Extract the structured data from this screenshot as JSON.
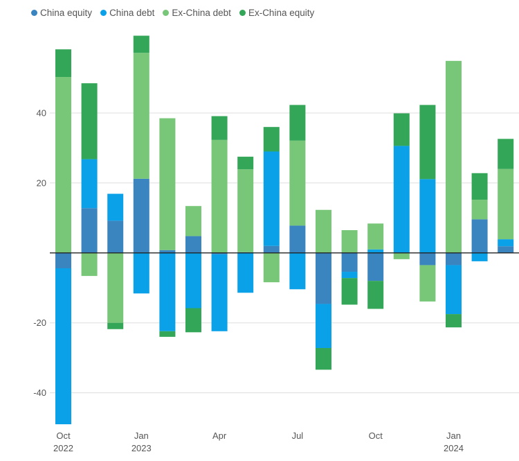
{
  "chart_data": {
    "type": "bar",
    "stacked": true,
    "title": "",
    "xlabel": "",
    "ylabel": "",
    "ylim": [
      -49,
      62
    ],
    "y_ticks": [
      40,
      20,
      -20,
      -40
    ],
    "y_tick_labels": [
      "40",
      "20",
      "-20",
      "-40"
    ],
    "grid": true,
    "legend_position": "top-left",
    "categories": [
      "Oct 2022",
      "Nov 2022",
      "Dec 2022",
      "Jan 2023",
      "Feb 2023",
      "Mar 2023",
      "Apr 2023",
      "May 2023",
      "Jun 2023",
      "Jul 2023",
      "Aug 2023",
      "Sep 2023",
      "Oct 2023",
      "Nov 2023",
      "Dec 2023",
      "Jan 2024",
      "Feb 2024",
      "Mar 2024"
    ],
    "x_tick_labels": [
      {
        "index": 0,
        "line1": "Oct",
        "line2": "2022"
      },
      {
        "index": 3,
        "line1": "Jan",
        "line2": "2023"
      },
      {
        "index": 6,
        "line1": "Apr",
        "line2": ""
      },
      {
        "index": 9,
        "line1": "Jul",
        "line2": ""
      },
      {
        "index": 12,
        "line1": "Oct",
        "line2": ""
      },
      {
        "index": 15,
        "line1": "Jan",
        "line2": "2024"
      }
    ],
    "series": [
      {
        "name": "China equity",
        "color": "#3a84c0",
        "values": [
          -4.4,
          12.8,
          9.2,
          21.2,
          0.8,
          4.8,
          -0.4,
          0.2,
          2.0,
          7.8,
          -14.6,
          -5.4,
          -8.0,
          0.0,
          -3.5,
          -3.5,
          9.6,
          1.9
        ]
      },
      {
        "name": "China debt",
        "color": "#0aa1e8",
        "values": [
          -44.6,
          14.0,
          7.7,
          -11.6,
          -22.4,
          -15.8,
          -22.0,
          -11.4,
          27.0,
          -10.4,
          -12.6,
          -1.8,
          1.0,
          30.6,
          21.1,
          -14.0,
          -2.4,
          2.0
        ]
      },
      {
        "name": "Ex-China debt",
        "color": "#78c779",
        "values": [
          50.3,
          -6.6,
          -20.0,
          36.0,
          37.7,
          8.6,
          32.3,
          23.7,
          -8.4,
          24.3,
          12.3,
          6.5,
          7.4,
          -1.8,
          -10.4,
          54.9,
          5.6,
          20.1
        ]
      },
      {
        "name": "Ex-China equity",
        "color": "#33a657",
        "values": [
          7.9,
          21.7,
          -1.8,
          4.9,
          -1.6,
          -6.9,
          6.8,
          3.6,
          7.0,
          10.2,
          -6.2,
          -7.6,
          -8.0,
          9.3,
          21.2,
          -3.8,
          7.6,
          8.6
        ]
      }
    ]
  }
}
